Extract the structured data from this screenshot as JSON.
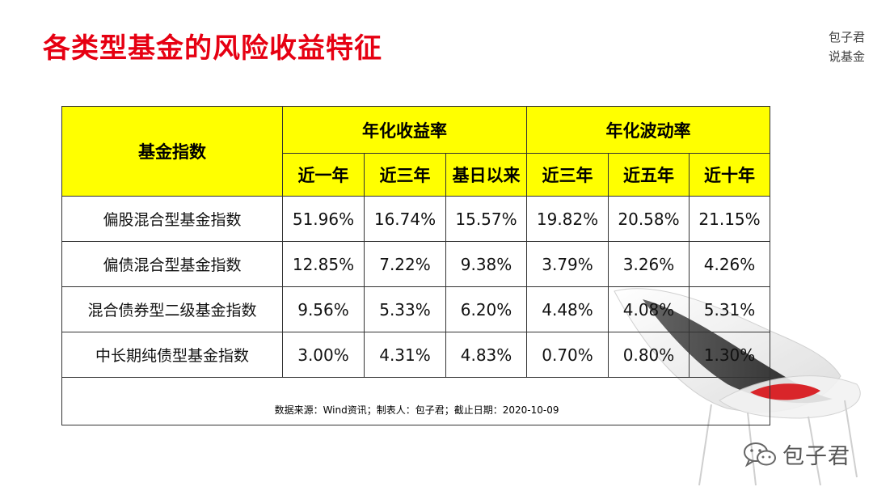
{
  "title": "各类型基金的风险收益特征",
  "brand": {
    "line1": "包子君",
    "line2": "说基金"
  },
  "table": {
    "header_fund": "基金指数",
    "header_return": "年化收益率",
    "header_volatility": "年化波动率",
    "sub_return": [
      "近一年",
      "近三年",
      "基日以来"
    ],
    "sub_volatility": [
      "近三年",
      "近五年",
      "近十年"
    ],
    "rows": [
      {
        "name": "偏股混合型基金指数",
        "values": [
          "51.96%",
          "16.74%",
          "15.57%",
          "19.82%",
          "20.58%",
          "21.15%"
        ]
      },
      {
        "name": "偏债混合型基金指数",
        "values": [
          "12.85%",
          "7.22%",
          "9.38%",
          "3.79%",
          "3.26%",
          "4.26%"
        ]
      },
      {
        "name": "混合债券型二级基金指数",
        "values": [
          "9.56%",
          "5.33%",
          "6.20%",
          "4.48%",
          "4.08%",
          "5.31%"
        ]
      },
      {
        "name": "中长期纯债型基金指数",
        "values": [
          "3.00%",
          "4.31%",
          "4.83%",
          "0.70%",
          "0.80%",
          "1.30%"
        ]
      }
    ],
    "footnote": "数据来源：Wind资讯；制表人：包子君；截止日期：2020-10-09"
  },
  "watermark": {
    "text": "包子君",
    "icon": "wechat-icon"
  },
  "colors": {
    "title": "#e60012",
    "header_bg": "#ffff00"
  }
}
